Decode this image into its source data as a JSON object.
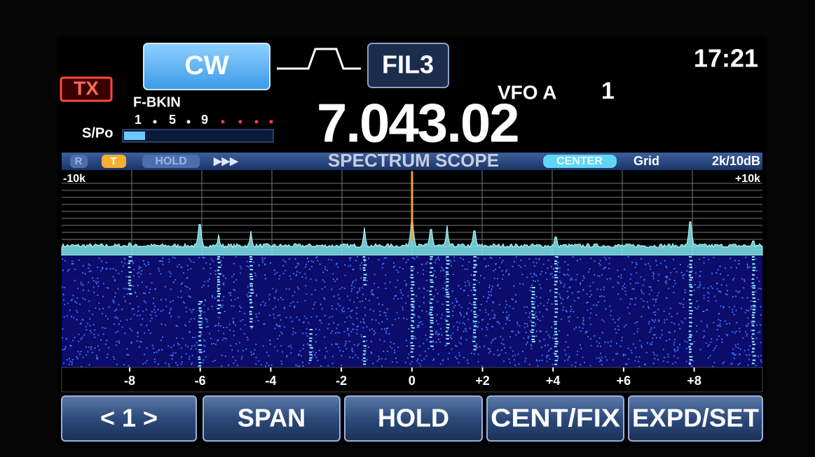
{
  "mode": "CW",
  "filter": "FIL3",
  "clock": "17:21",
  "tx": "TX",
  "break_in": "F-BKIN",
  "vfo": "VFO A",
  "memory": "1",
  "frequency": "7.043.02",
  "meter": {
    "scale": [
      "1",
      "5",
      "9"
    ],
    "label": "S/Po"
  },
  "scope": {
    "badges": [
      "R",
      "T",
      "HOLD",
      "▶▶▶"
    ],
    "title": "SPECTRUM SCOPE",
    "center": "CENTER",
    "grid": "Grid",
    "span": "2k/10dB",
    "left_edge": "-10k",
    "right_edge": "+10k",
    "scale": [
      "-8",
      "-6",
      "-4",
      "-2",
      "0",
      "+2",
      "+4",
      "+6",
      "+8"
    ]
  },
  "buttons": [
    "< 1 >",
    "SPAN",
    "HOLD",
    "CENT/FIX",
    "EXPD/SET"
  ]
}
